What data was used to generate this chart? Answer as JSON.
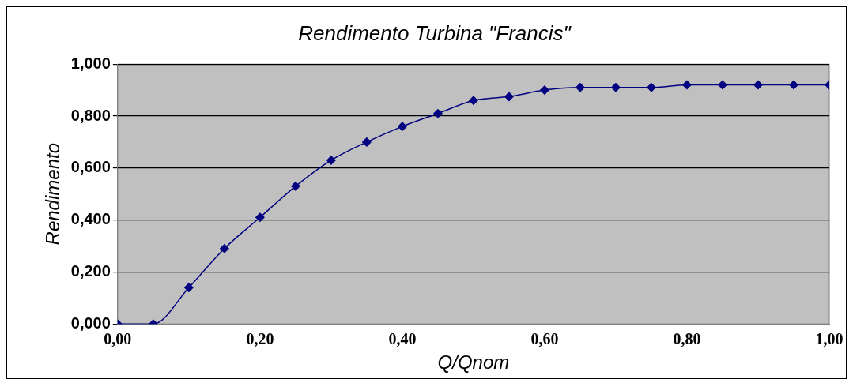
{
  "chart_data": {
    "type": "line",
    "title": "Rendimento Turbina \"Francis\"",
    "xlabel": "Q/Qnom",
    "ylabel": "Rendimento",
    "x": [
      0,
      0.05,
      0.1,
      0.15,
      0.2,
      0.25,
      0.3,
      0.35,
      0.4,
      0.45,
      0.5,
      0.55,
      0.6,
      0.65,
      0.7,
      0.75,
      0.8,
      0.85,
      0.9,
      0.95,
      1.0
    ],
    "series": [
      {
        "color": "#000080",
        "values": [
          0,
          0,
          0.14,
          0.29,
          0.41,
          0.53,
          0.63,
          0.7,
          0.76,
          0.81,
          0.86,
          0.875,
          0.9,
          0.91,
          0.91,
          0.91,
          0.92,
          0.92,
          0.92,
          0.92,
          0.92
        ]
      }
    ],
    "xlim": [
      0,
      1
    ],
    "xticks": [
      {
        "value": 0,
        "label": "0,00"
      },
      {
        "value": 0.2,
        "label": "0,20"
      },
      {
        "value": 0.4,
        "label": "0,40"
      },
      {
        "value": 0.6,
        "label": "0,60"
      },
      {
        "value": 0.8,
        "label": "0,80"
      },
      {
        "value": 1,
        "label": "1,00"
      }
    ],
    "ylim": [
      0,
      1
    ],
    "yticks": [
      {
        "value": 0,
        "label": "0,000"
      },
      {
        "value": 0.2,
        "label": "0,200"
      },
      {
        "value": 0.4,
        "label": "0,400"
      },
      {
        "value": 0.6,
        "label": "0,600"
      },
      {
        "value": 0.8,
        "label": "0,800"
      },
      {
        "value": 1,
        "label": "1,000"
      }
    ],
    "grid": "y",
    "legend": false,
    "marker": "diamond",
    "line_style": "solid"
  }
}
